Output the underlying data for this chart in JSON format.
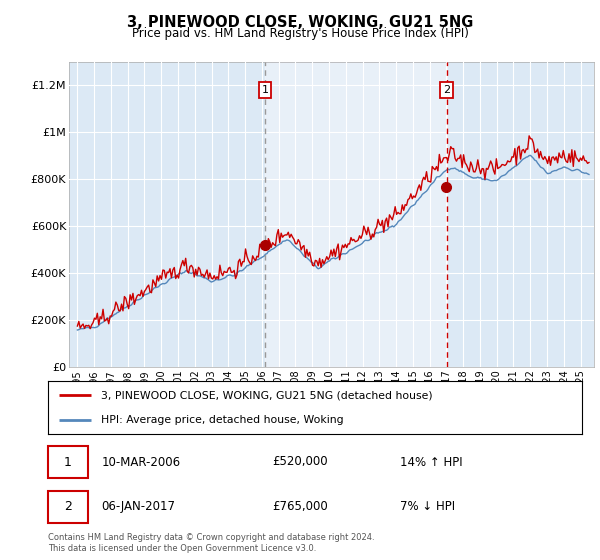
{
  "title": "3, PINEWOOD CLOSE, WOKING, GU21 5NG",
  "subtitle": "Price paid vs. HM Land Registry's House Price Index (HPI)",
  "legend_line1": "3, PINEWOOD CLOSE, WOKING, GU21 5NG (detached house)",
  "legend_line2": "HPI: Average price, detached house, Woking",
  "annotation1_date": "10-MAR-2006",
  "annotation1_price": "£520,000",
  "annotation1_hpi": "14% ↑ HPI",
  "annotation1_year": 2006.19,
  "annotation1_value": 520000,
  "annotation2_date": "06-JAN-2017",
  "annotation2_price": "£765,000",
  "annotation2_hpi": "7% ↓ HPI",
  "annotation2_year": 2017.02,
  "annotation2_value": 765000,
  "footer": "Contains HM Land Registry data © Crown copyright and database right 2024.\nThis data is licensed under the Open Government Licence v3.0.",
  "background_color": "#ffffff",
  "plot_bg_color": "#dce9f5",
  "shade_color": "#c8ddf0",
  "hpi_line_color": "#5588bb",
  "price_line_color": "#cc0000",
  "annotation_box_color": "#cc0000",
  "vline1_color": "#999999",
  "vline2_color": "#cc0000",
  "dot_color": "#aa0000",
  "ylim_min": 0,
  "ylim_max": 1300000,
  "xlim_min": 1994.5,
  "xlim_max": 2025.8,
  "yticks": [
    0,
    200000,
    400000,
    600000,
    800000,
    1000000,
    1200000
  ],
  "ytick_labels": [
    "£0",
    "£200K",
    "£400K",
    "£600K",
    "£800K",
    "£1M",
    "£1.2M"
  ],
  "xticks": [
    1995,
    1996,
    1997,
    1998,
    1999,
    2000,
    2001,
    2002,
    2003,
    2004,
    2005,
    2006,
    2007,
    2008,
    2009,
    2010,
    2011,
    2012,
    2013,
    2014,
    2015,
    2016,
    2017,
    2018,
    2019,
    2020,
    2021,
    2022,
    2023,
    2024,
    2025
  ]
}
